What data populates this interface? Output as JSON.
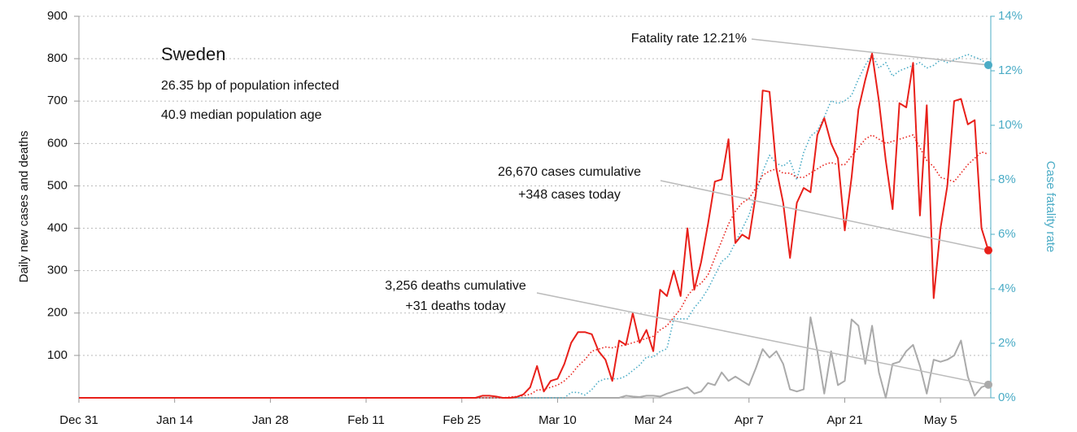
{
  "chart_data": {
    "type": "line",
    "title": "Sweden",
    "subtitle_infected": "26.35 bp of population infected",
    "subtitle_age": "40.9 median population age",
    "annotations": {
      "fatality": "Fatality rate 12.21%",
      "cases_cum": "26,670 cases cumulative",
      "cases_today": "+348 cases today",
      "deaths_cum": "3,256 deaths cumulative",
      "deaths_today": "+31 deaths today"
    },
    "ylabel": "Daily new cases and deaths",
    "y2label": "Case fatality rate",
    "categories": [
      "Dec 31",
      null,
      null,
      null,
      null,
      null,
      null,
      null,
      null,
      null,
      null,
      null,
      null,
      null,
      "Jan 14",
      null,
      null,
      null,
      null,
      null,
      null,
      null,
      null,
      null,
      null,
      null,
      null,
      null,
      "Jan 28",
      null,
      null,
      null,
      null,
      null,
      null,
      null,
      null,
      null,
      null,
      null,
      null,
      null,
      "Feb 11",
      null,
      null,
      null,
      null,
      null,
      null,
      null,
      null,
      null,
      null,
      null,
      null,
      null,
      "Feb 25",
      null,
      null,
      null,
      null,
      null,
      null,
      null,
      null,
      null,
      null,
      null,
      null,
      null,
      "Mar 10",
      null,
      null,
      null,
      null,
      null,
      null,
      null,
      null,
      null,
      null,
      null,
      null,
      null,
      "Mar 24",
      null,
      null,
      null,
      null,
      null,
      null,
      null,
      null,
      null,
      null,
      null,
      null,
      null,
      "Apr 7",
      null,
      null,
      null,
      null,
      null,
      null,
      null,
      null,
      null,
      null,
      null,
      null,
      null,
      "Apr 21",
      null,
      null,
      null,
      null,
      null,
      null,
      null,
      null,
      null,
      null,
      null,
      null,
      null,
      "May 5",
      null,
      null,
      null,
      null,
      null,
      null,
      null
    ],
    "ylim": [
      0,
      900
    ],
    "yticks": [
      100,
      200,
      300,
      400,
      500,
      600,
      700,
      800,
      900
    ],
    "y2lim": [
      0,
      14
    ],
    "y2ticks": [
      {
        "value": 0,
        "label": "0%"
      },
      {
        "value": 2,
        "label": "2%"
      },
      {
        "value": 4,
        "label": "4%"
      },
      {
        "value": 6,
        "label": "6%"
      },
      {
        "value": 8,
        "label": "8%"
      },
      {
        "value": 10,
        "label": "10%"
      },
      {
        "value": 12,
        "label": "12%"
      },
      {
        "value": 14,
        "label": "14%"
      }
    ],
    "grid": true,
    "series": [
      {
        "color": "#aaaaaa",
        "line_style": "solid",
        "values": [
          0,
          0,
          0,
          0,
          0,
          0,
          0,
          0,
          0,
          0,
          0,
          0,
          0,
          0,
          0,
          0,
          0,
          0,
          0,
          0,
          0,
          0,
          0,
          0,
          0,
          0,
          0,
          0,
          0,
          0,
          0,
          0,
          0,
          0,
          0,
          0,
          0,
          0,
          0,
          0,
          0,
          0,
          0,
          0,
          0,
          0,
          0,
          0,
          0,
          0,
          0,
          0,
          0,
          0,
          0,
          0,
          0,
          0,
          0,
          0,
          0,
          0,
          0,
          0,
          0,
          0,
          0,
          0,
          0,
          0,
          0,
          0,
          0,
          0,
          0,
          0,
          0,
          0,
          0,
          0,
          5,
          3,
          2,
          5,
          5,
          3,
          10,
          15,
          20,
          25,
          10,
          15,
          35,
          30,
          60,
          40,
          50,
          40,
          30,
          70,
          115,
          95,
          110,
          80,
          20,
          15,
          20,
          190,
          110,
          10,
          110,
          30,
          40,
          185,
          170,
          80,
          170,
          60,
          0,
          80,
          85,
          110,
          125,
          75,
          10,
          90,
          85,
          90,
          100,
          135,
          50,
          5,
          25,
          31
        ]
      },
      {
        "color": "#4bacc6",
        "line_style": "dotted",
        "axis": "y2",
        "values": [
          0,
          0,
          0,
          0,
          0,
          0,
          0,
          0,
          0,
          0,
          0,
          0,
          0,
          0,
          0,
          0,
          0,
          0,
          0,
          0,
          0,
          0,
          0,
          0,
          0,
          0,
          0,
          0,
          0,
          0,
          0,
          0,
          0,
          0,
          0,
          0,
          0,
          0,
          0,
          0,
          0,
          0,
          0,
          0,
          0,
          0,
          0,
          0,
          0,
          0,
          0,
          0,
          0,
          0,
          0,
          0,
          0,
          0,
          0,
          0,
          0,
          0,
          0,
          0,
          0,
          0,
          0,
          0,
          0,
          0,
          0,
          0,
          0.2,
          0.2,
          0.1,
          0.3,
          0.6,
          0.7,
          0.7,
          0.7,
          0.8,
          1.0,
          1.2,
          1.5,
          1.5,
          1.7,
          1.8,
          2.9,
          2.9,
          2.9,
          3.3,
          3.6,
          4.0,
          4.5,
          5.0,
          5.2,
          5.7,
          6.2,
          6.7,
          7.5,
          8.3,
          8.9,
          8.6,
          8.5,
          8.7,
          8.0,
          9.0,
          9.6,
          9.8,
          10.3,
          10.9,
          10.8,
          10.9,
          11.1,
          11.7,
          12.2,
          12.6,
          12.1,
          12.3,
          11.8,
          12.0,
          12.1,
          12.2,
          12.3,
          12.1,
          12.2,
          12.4,
          12.3,
          12.4,
          12.5,
          12.6,
          12.5,
          12.4,
          12.21
        ]
      },
      {
        "color": "#e8201a",
        "line_style": "dotted",
        "values": [
          0,
          0,
          0,
          0,
          0,
          0,
          0,
          0,
          0,
          0,
          0,
          0,
          0,
          0,
          0,
          0,
          0,
          0,
          0,
          0,
          0,
          0,
          0,
          0,
          0,
          0,
          0,
          0,
          0,
          0,
          0,
          0,
          0,
          0,
          0,
          0,
          0,
          0,
          0,
          0,
          0,
          0,
          0,
          0,
          0,
          0,
          0,
          0,
          0,
          0,
          0,
          0,
          0,
          0,
          0,
          0,
          0,
          0,
          0,
          0,
          0,
          0,
          0,
          2,
          3,
          5,
          8,
          18,
          20,
          25,
          30,
          40,
          55,
          75,
          90,
          110,
          115,
          120,
          118,
          122,
          125,
          130,
          135,
          140,
          145,
          160,
          170,
          190,
          210,
          240,
          260,
          270,
          290,
          330,
          370,
          410,
          440,
          460,
          470,
          495,
          525,
          535,
          540,
          530,
          530,
          520,
          520,
          530,
          540,
          550,
          555,
          550,
          550,
          570,
          590,
          610,
          620,
          610,
          600,
          605,
          610,
          615,
          620,
          590,
          560,
          545,
          520,
          515,
          510,
          530,
          550,
          565,
          580,
          575
        ]
      },
      {
        "color": "#e8201a",
        "line_style": "solid",
        "values": [
          0,
          0,
          0,
          0,
          0,
          0,
          0,
          0,
          0,
          0,
          0,
          0,
          0,
          0,
          0,
          0,
          0,
          0,
          0,
          0,
          0,
          0,
          0,
          0,
          0,
          0,
          0,
          0,
          0,
          0,
          0,
          0,
          0,
          0,
          0,
          0,
          0,
          0,
          0,
          0,
          0,
          0,
          0,
          0,
          0,
          0,
          0,
          0,
          0,
          0,
          0,
          0,
          0,
          0,
          0,
          0,
          0,
          0,
          0,
          5,
          5,
          3,
          0,
          0,
          2,
          8,
          25,
          75,
          15,
          40,
          45,
          80,
          130,
          155,
          155,
          150,
          110,
          90,
          40,
          135,
          125,
          200,
          130,
          160,
          110,
          255,
          240,
          300,
          240,
          400,
          255,
          320,
          410,
          510,
          515,
          610,
          365,
          385,
          375,
          480,
          725,
          722,
          540,
          460,
          330,
          460,
          495,
          485,
          620,
          660,
          600,
          565,
          395,
          520,
          680,
          750,
          812,
          700,
          560,
          445,
          695,
          685,
          790,
          430,
          690,
          235,
          400,
          500,
          700,
          705,
          645,
          655,
          400,
          348
        ]
      }
    ]
  }
}
